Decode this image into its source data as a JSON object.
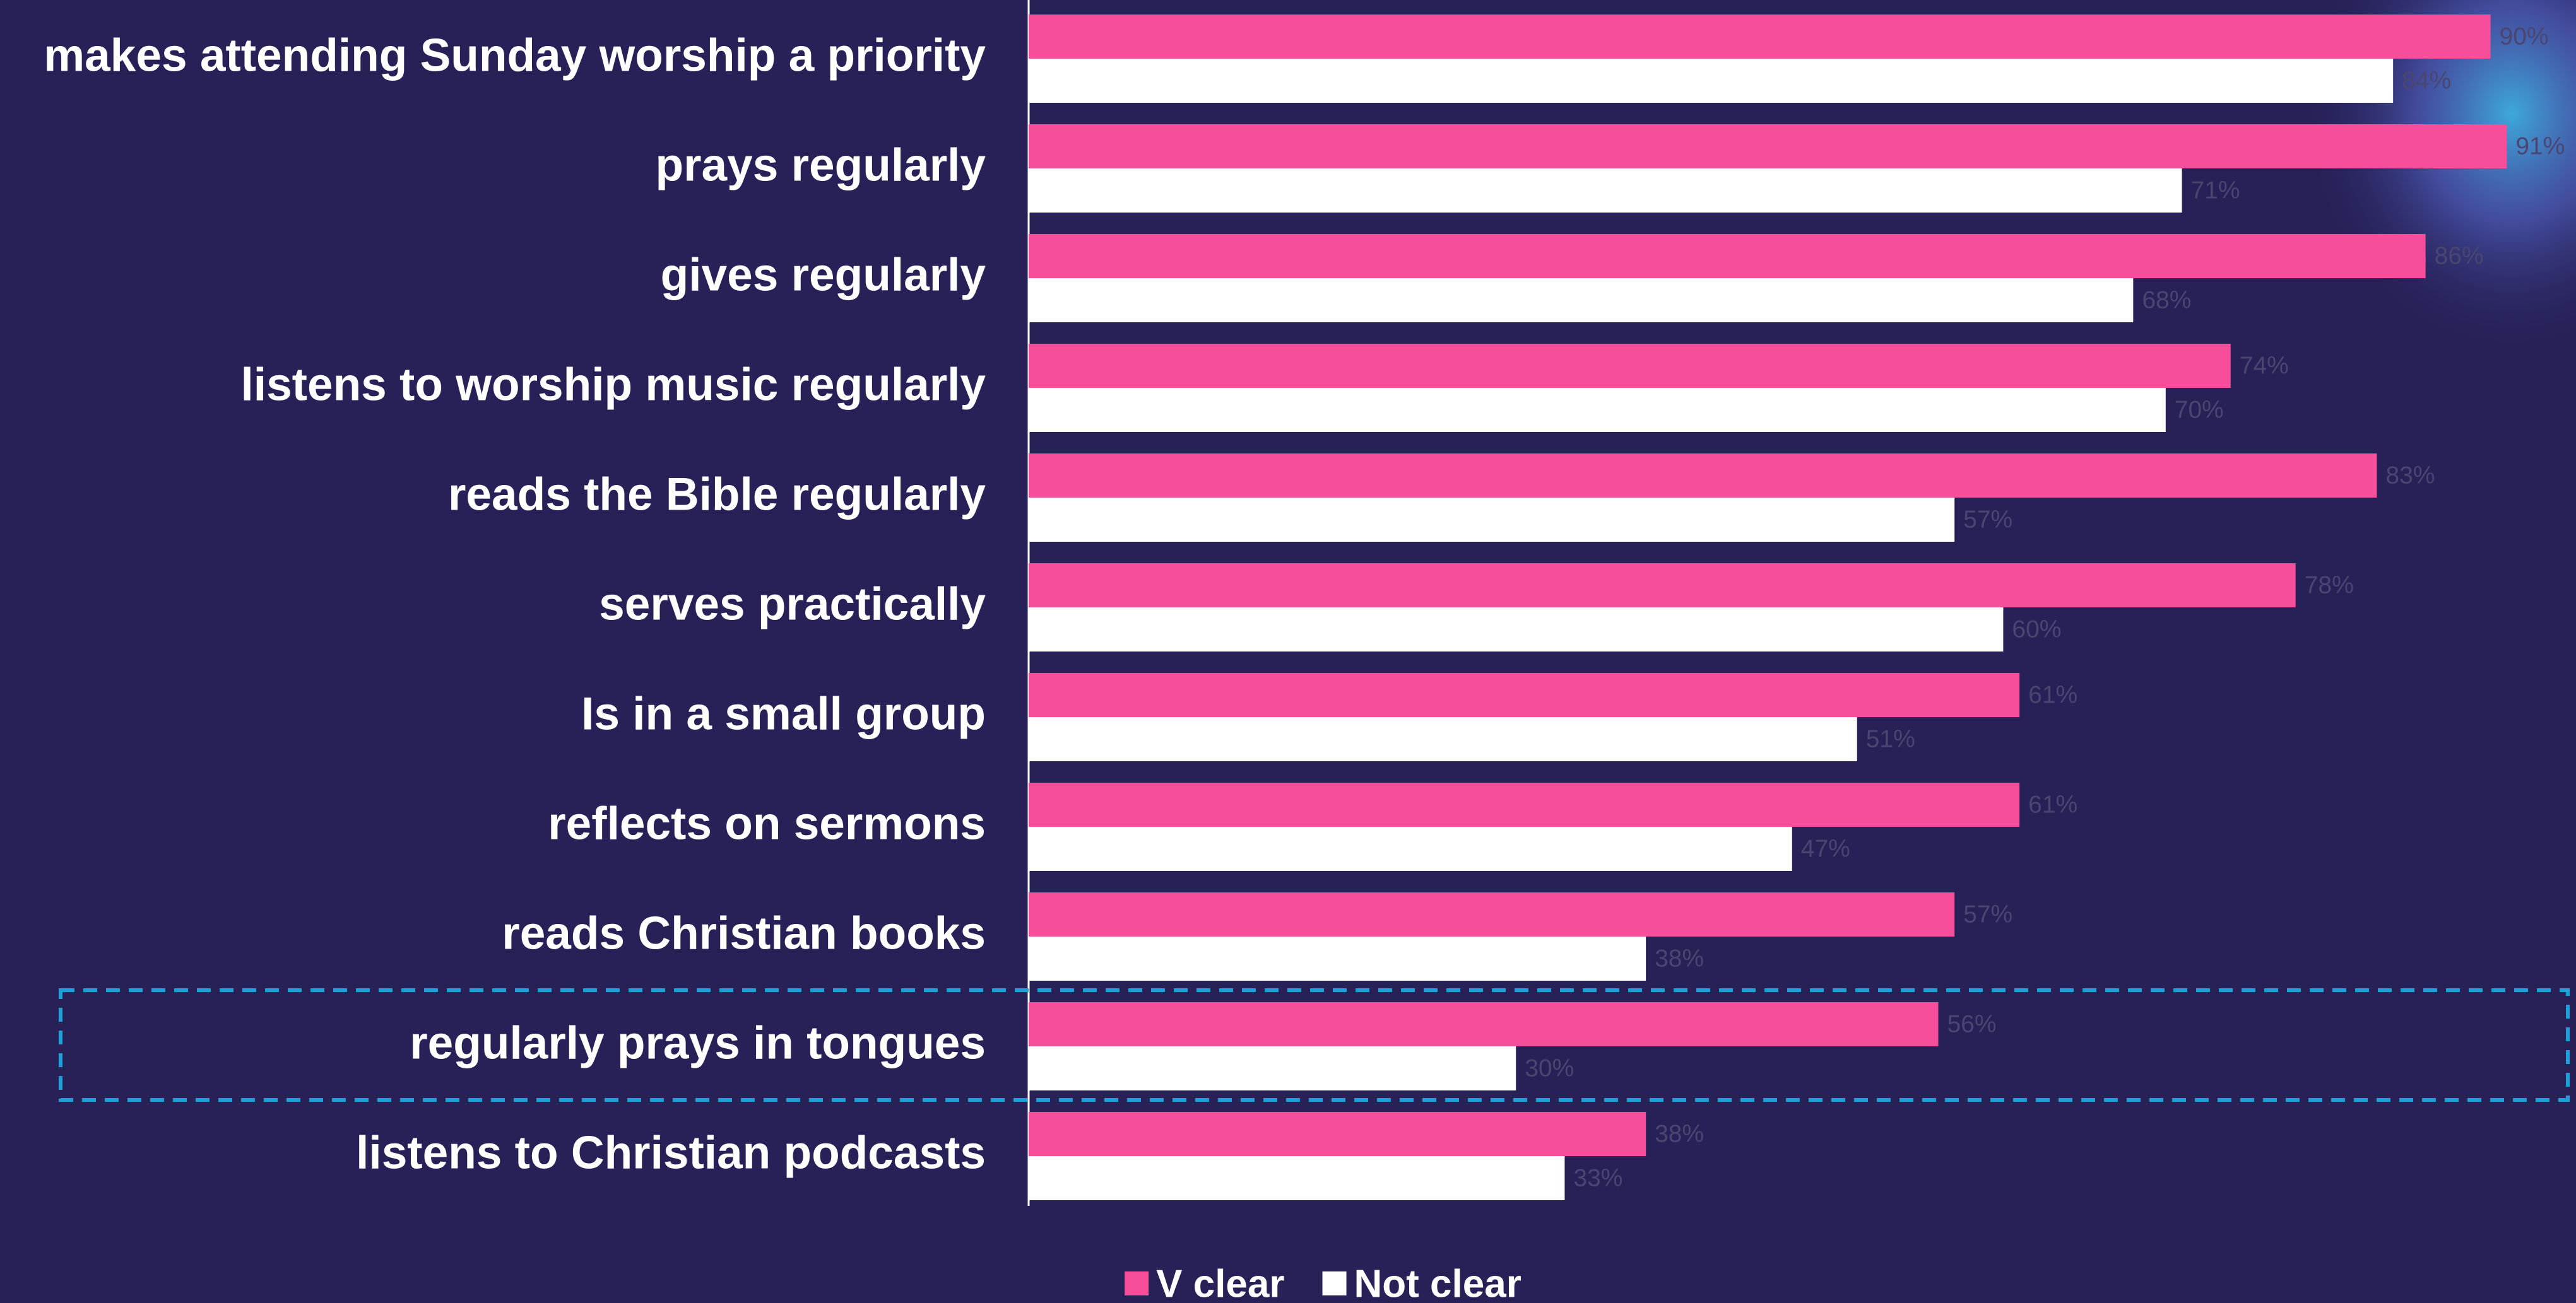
{
  "chart_data": {
    "type": "bar",
    "orientation": "horizontal",
    "categories": [
      "makes attending Sunday worship a priority",
      "prays regularly",
      "gives regularly",
      "listens to worship music regularly",
      "reads the Bible regularly",
      "serves practically",
      "Is in a small group",
      "reflects on sermons",
      "reads Christian books",
      "regularly prays in tongues",
      "listens to Christian podcasts"
    ],
    "series": [
      {
        "name": "V clear",
        "color": "#f74e9c",
        "values": [
          90,
          91,
          86,
          74,
          83,
          78,
          61,
          61,
          57,
          56,
          38
        ],
        "value_labels": [
          "90%",
          "91%",
          "86%",
          "74%",
          "83%",
          "78%",
          "61%",
          "61%",
          "57%",
          "56%",
          "38%"
        ]
      },
      {
        "name": "Not clear",
        "color": "#ffffff",
        "values": [
          84,
          71,
          68,
          70,
          57,
          60,
          51,
          47,
          38,
          30,
          33
        ],
        "value_labels": [
          "84%",
          "71%",
          "68%",
          "70%",
          "57%",
          "60%",
          "51%",
          "47%",
          "38%",
          "30%",
          "33%"
        ]
      }
    ],
    "legend": "bottom"
  }
}
